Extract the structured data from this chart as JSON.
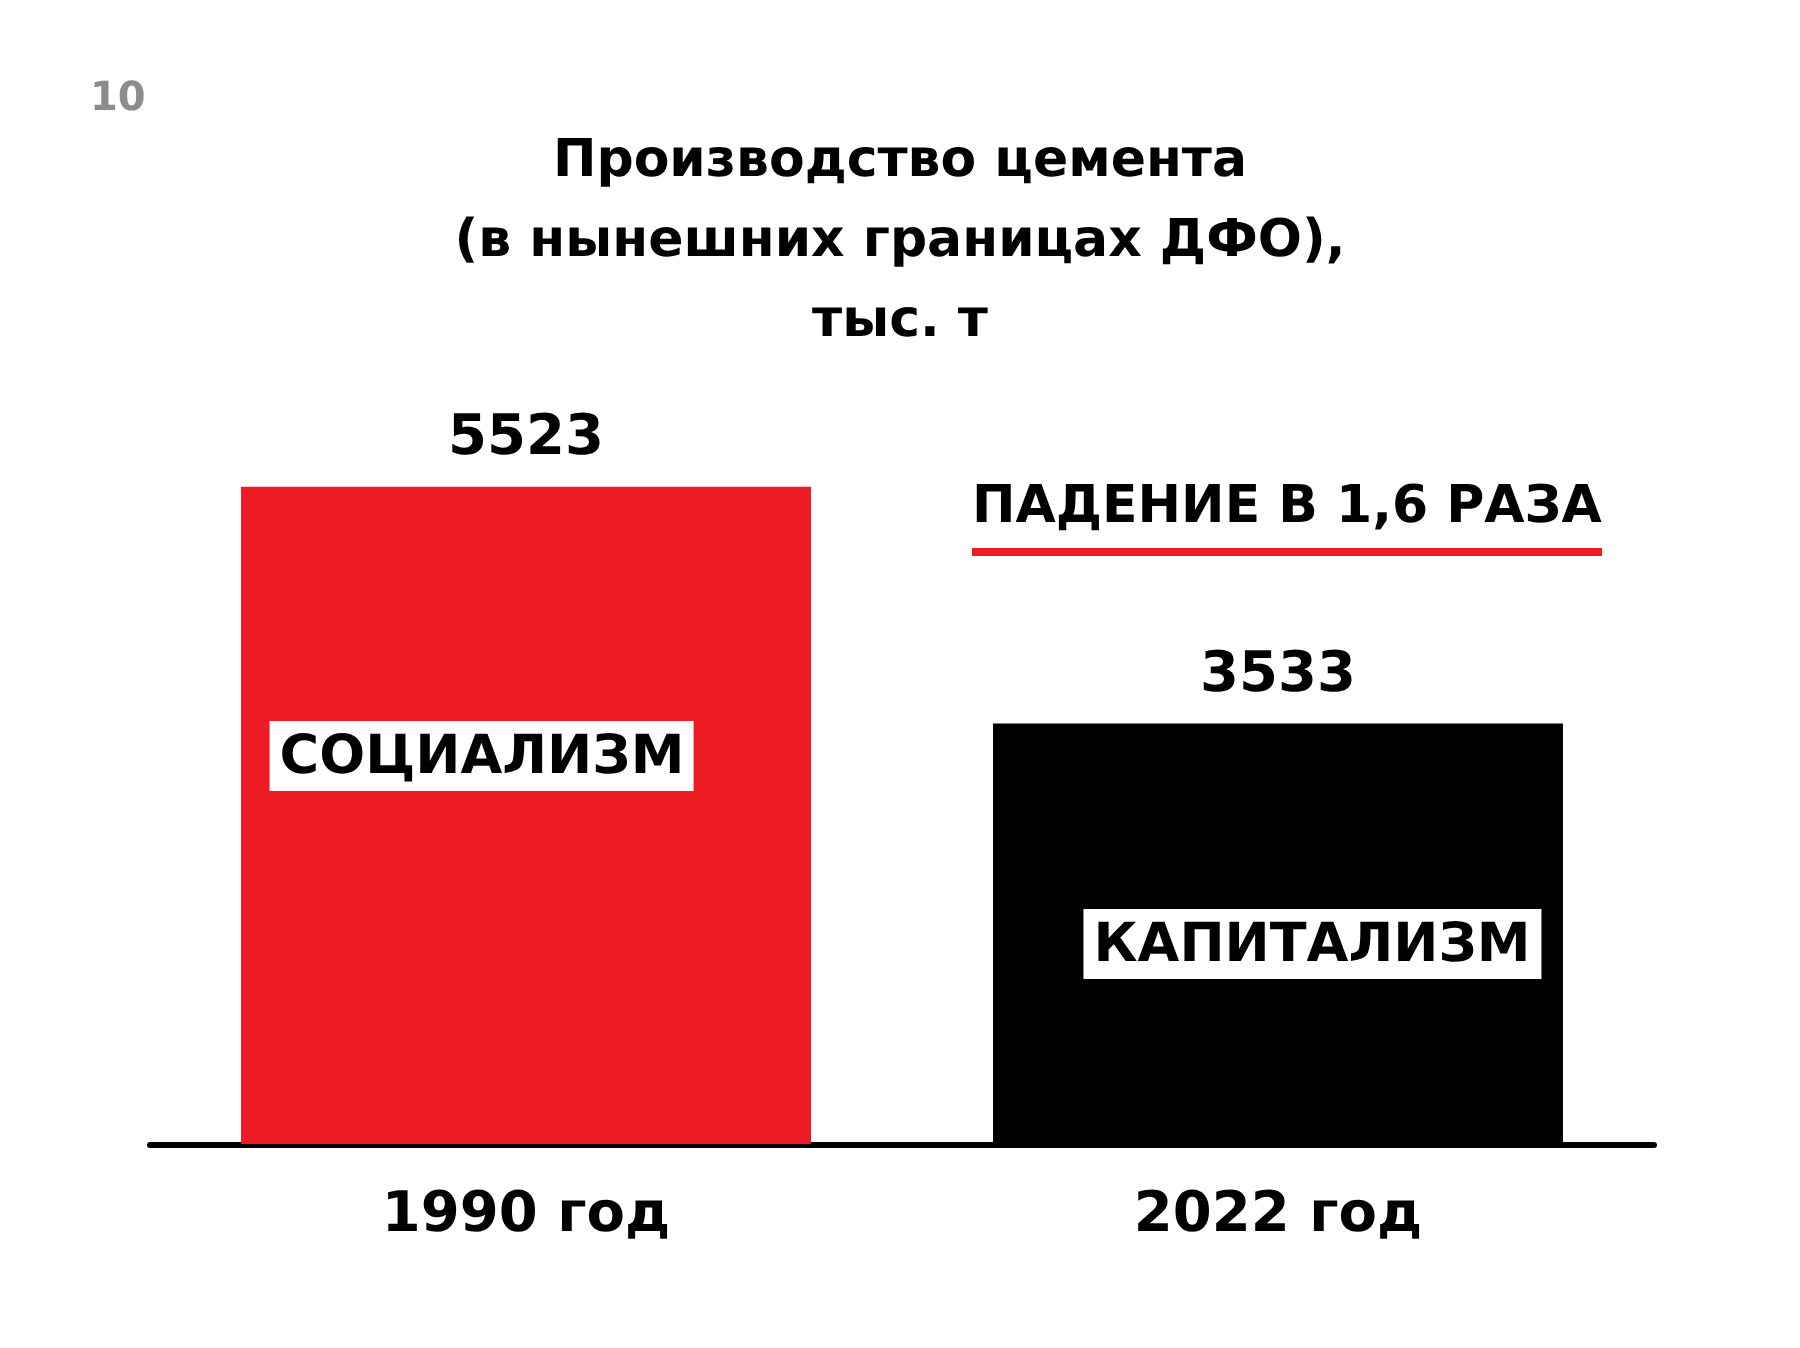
{
  "chart_data": {
    "type": "bar",
    "title": "Производство цемента\n(в нынешних границах ДФО),\nтыс. т",
    "categories": [
      "1990 год",
      "2022 год"
    ],
    "values": [
      5523,
      3533
    ],
    "colors": [
      "#ed1c24",
      "#000000"
    ],
    "data_labels": true,
    "annotations": [
      "10",
      "ПАДЕНИЕ В 1,6 РАЗА",
      "СОЦИАЛИЗМ",
      "КАПИТАЛИЗМ"
    ]
  }
}
